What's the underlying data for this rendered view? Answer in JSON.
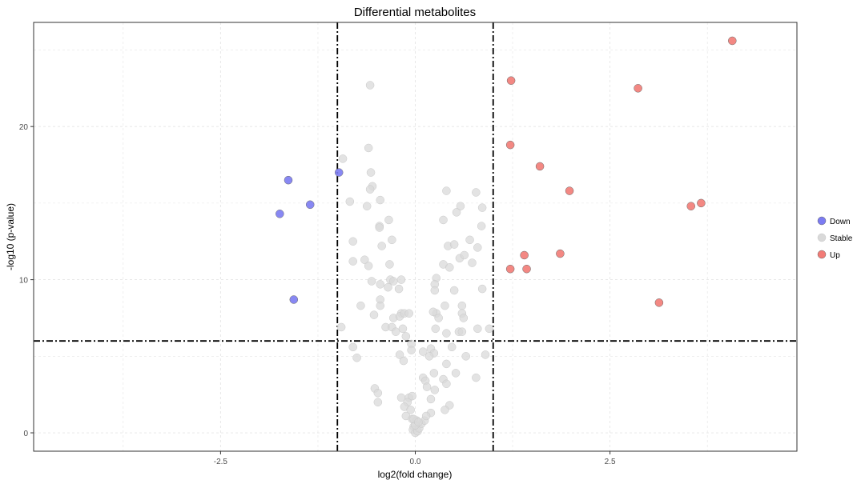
{
  "chart_data": {
    "type": "scatter",
    "title": "Differential metabolites",
    "xlabel": "log2(fold change)",
    "ylabel": "-log10 (p-value)",
    "xlim": [
      -4.9,
      4.9
    ],
    "ylim": [
      -1.2,
      26.8
    ],
    "x_ticks": [
      -2.5,
      0.0,
      2.5
    ],
    "x_tick_labels": [
      "-2.5",
      "0.0",
      "2.5"
    ],
    "y_ticks": [
      0,
      10,
      20
    ],
    "y_tick_labels": [
      "0",
      "10",
      "20"
    ],
    "grid": true,
    "legend_position": "right",
    "thresholds": {
      "x": [
        -1,
        1
      ],
      "y": 6
    },
    "series": [
      {
        "name": "Down",
        "color": "#7b7bf2",
        "points": [
          [
            -1.63,
            16.5
          ],
          [
            -1.35,
            14.9
          ],
          [
            -1.74,
            14.3
          ],
          [
            -1.56,
            8.7
          ],
          [
            -0.98,
            17.0
          ]
        ]
      },
      {
        "name": "Stable",
        "color": "#d9d9d9",
        "points": [
          [
            -0.58,
            22.7
          ],
          [
            -0.6,
            18.6
          ],
          [
            -0.93,
            17.9
          ],
          [
            -0.57,
            17.0
          ],
          [
            -0.55,
            16.1
          ],
          [
            -0.58,
            15.9
          ],
          [
            -0.45,
            15.2
          ],
          [
            -0.84,
            15.1
          ],
          [
            -0.62,
            14.8
          ],
          [
            -0.34,
            13.9
          ],
          [
            -0.46,
            13.5
          ],
          [
            -0.46,
            13.4
          ],
          [
            -0.8,
            12.5
          ],
          [
            -0.3,
            12.6
          ],
          [
            -0.43,
            12.2
          ],
          [
            -0.65,
            11.3
          ],
          [
            -0.8,
            11.2
          ],
          [
            -0.6,
            10.9
          ],
          [
            -0.33,
            11.0
          ],
          [
            -0.45,
            9.7
          ],
          [
            -0.32,
            10.0
          ],
          [
            -0.28,
            9.9
          ],
          [
            -0.56,
            9.9
          ],
          [
            -0.18,
            10.0
          ],
          [
            -0.35,
            9.5
          ],
          [
            -0.21,
            9.4
          ],
          [
            -0.45,
            8.7
          ],
          [
            -0.7,
            8.3
          ],
          [
            -0.45,
            8.3
          ],
          [
            -0.28,
            7.5
          ],
          [
            -0.18,
            7.8
          ],
          [
            -0.2,
            7.6
          ],
          [
            -0.14,
            7.8
          ],
          [
            -0.53,
            7.7
          ],
          [
            -0.08,
            7.8
          ],
          [
            -0.38,
            6.9
          ],
          [
            -0.3,
            6.9
          ],
          [
            -0.25,
            6.6
          ],
          [
            -0.16,
            6.8
          ],
          [
            -0.12,
            6.3
          ],
          [
            -0.05,
            5.8
          ],
          [
            -0.2,
            5.1
          ],
          [
            -0.15,
            4.7
          ],
          [
            -0.05,
            5.4
          ],
          [
            -0.95,
            6.9
          ],
          [
            -0.8,
            5.6
          ],
          [
            -0.75,
            4.9
          ],
          [
            -0.52,
            2.9
          ],
          [
            -0.48,
            2.6
          ],
          [
            -0.48,
            2.0
          ],
          [
            -0.18,
            2.3
          ],
          [
            -0.08,
            2.3
          ],
          [
            -0.1,
            2.0
          ],
          [
            -0.04,
            2.4
          ],
          [
            -0.14,
            1.7
          ],
          [
            -0.06,
            1.5
          ],
          [
            -0.12,
            1.1
          ],
          [
            -0.04,
            0.9
          ],
          [
            -0.02,
            0.4
          ],
          [
            -0.03,
            0.2
          ],
          [
            0.0,
            0.0
          ],
          [
            0.03,
            0.1
          ],
          [
            0.05,
            0.3
          ],
          [
            0.08,
            0.6
          ],
          [
            0.12,
            0.8
          ],
          [
            0.02,
            0.8
          ],
          [
            0.0,
            0.5
          ],
          [
            -0.02,
            0.9
          ],
          [
            0.04,
            0.7
          ],
          [
            0.4,
            15.8
          ],
          [
            0.78,
            15.7
          ],
          [
            0.58,
            14.8
          ],
          [
            0.53,
            14.4
          ],
          [
            0.86,
            14.7
          ],
          [
            0.36,
            13.9
          ],
          [
            0.85,
            13.5
          ],
          [
            0.7,
            12.6
          ],
          [
            0.42,
            12.2
          ],
          [
            0.5,
            12.3
          ],
          [
            0.8,
            12.1
          ],
          [
            0.57,
            11.4
          ],
          [
            0.36,
            11.0
          ],
          [
            0.63,
            11.6
          ],
          [
            0.73,
            11.1
          ],
          [
            0.44,
            10.8
          ],
          [
            0.27,
            10.1
          ],
          [
            0.25,
            9.7
          ],
          [
            0.86,
            9.4
          ],
          [
            0.5,
            9.3
          ],
          [
            0.25,
            9.3
          ],
          [
            0.38,
            8.3
          ],
          [
            0.6,
            8.3
          ],
          [
            0.27,
            7.8
          ],
          [
            0.23,
            7.9
          ],
          [
            0.6,
            7.8
          ],
          [
            0.62,
            7.5
          ],
          [
            0.3,
            7.5
          ],
          [
            0.8,
            6.8
          ],
          [
            0.95,
            6.8
          ],
          [
            0.56,
            6.6
          ],
          [
            0.6,
            6.6
          ],
          [
            0.4,
            6.5
          ],
          [
            0.26,
            6.8
          ],
          [
            0.47,
            5.6
          ],
          [
            0.2,
            5.5
          ],
          [
            0.24,
            5.2
          ],
          [
            0.18,
            5.0
          ],
          [
            0.1,
            5.3
          ],
          [
            0.4,
            4.5
          ],
          [
            0.65,
            5.0
          ],
          [
            0.9,
            5.1
          ],
          [
            0.78,
            3.6
          ],
          [
            0.1,
            3.6
          ],
          [
            0.13,
            3.4
          ],
          [
            0.24,
            3.9
          ],
          [
            0.36,
            3.5
          ],
          [
            0.52,
            3.9
          ],
          [
            0.4,
            3.2
          ],
          [
            0.15,
            3.0
          ],
          [
            0.25,
            2.8
          ],
          [
            0.2,
            2.2
          ],
          [
            0.44,
            1.8
          ],
          [
            0.38,
            1.5
          ],
          [
            0.2,
            1.3
          ],
          [
            0.14,
            1.1
          ]
        ]
      },
      {
        "name": "Up",
        "color": "#f27b76",
        "points": [
          [
            4.07,
            25.6
          ],
          [
            1.23,
            23.0
          ],
          [
            2.86,
            22.5
          ],
          [
            1.22,
            18.8
          ],
          [
            1.6,
            17.4
          ],
          [
            1.98,
            15.8
          ],
          [
            3.54,
            14.8
          ],
          [
            3.67,
            15.0
          ],
          [
            1.4,
            11.6
          ],
          [
            1.86,
            11.7
          ],
          [
            1.22,
            10.7
          ],
          [
            1.43,
            10.7
          ],
          [
            3.13,
            8.5
          ]
        ]
      }
    ]
  }
}
